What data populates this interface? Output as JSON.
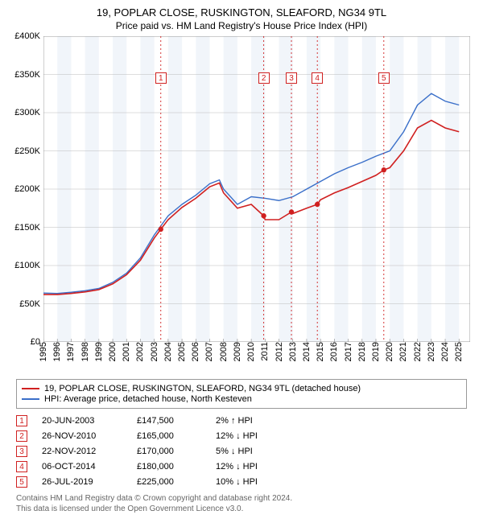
{
  "title": "19, POPLAR CLOSE, RUSKINGTON, SLEAFORD, NG34 9TL",
  "subtitle": "Price paid vs. HM Land Registry's House Price Index (HPI)",
  "chart": {
    "type": "line",
    "xlim": [
      1995,
      2025.8
    ],
    "ylim": [
      0,
      400000
    ],
    "ytick_step": 50000,
    "yticks_labels": [
      "£0",
      "£50K",
      "£100K",
      "£150K",
      "£200K",
      "£250K",
      "£300K",
      "£350K",
      "£400K"
    ],
    "xticks": [
      1995,
      1996,
      1997,
      1998,
      1999,
      2000,
      2001,
      2002,
      2003,
      2004,
      2005,
      2006,
      2007,
      2008,
      2009,
      2010,
      2011,
      2012,
      2013,
      2014,
      2015,
      2016,
      2017,
      2018,
      2019,
      2020,
      2021,
      2022,
      2023,
      2024,
      2025
    ],
    "band_color": "#e6ecf5",
    "grid_color": "#bbbbbb",
    "axis_color": "#888888",
    "background": "#ffffff",
    "label_fontsize": 11,
    "series": [
      {
        "key": "hpi",
        "label": "HPI: Average price, detached house, North Kesteven",
        "color": "#3a6fc9",
        "width": 1.4,
        "points": [
          [
            1995,
            64000
          ],
          [
            1996,
            63500
          ],
          [
            1997,
            65000
          ],
          [
            1998,
            67000
          ],
          [
            1999,
            70000
          ],
          [
            2000,
            78000
          ],
          [
            2001,
            90000
          ],
          [
            2002,
            110000
          ],
          [
            2003,
            140000
          ],
          [
            2004,
            165000
          ],
          [
            2005,
            180000
          ],
          [
            2006,
            192000
          ],
          [
            2007,
            207000
          ],
          [
            2007.7,
            212000
          ],
          [
            2008,
            200000
          ],
          [
            2009,
            180000
          ],
          [
            2010,
            190000
          ],
          [
            2011,
            188000
          ],
          [
            2012,
            185000
          ],
          [
            2013,
            190000
          ],
          [
            2014,
            200000
          ],
          [
            2015,
            210000
          ],
          [
            2016,
            220000
          ],
          [
            2017,
            228000
          ],
          [
            2018,
            235000
          ],
          [
            2019,
            243000
          ],
          [
            2020,
            250000
          ],
          [
            2021,
            275000
          ],
          [
            2022,
            310000
          ],
          [
            2023,
            325000
          ],
          [
            2024,
            315000
          ],
          [
            2025,
            310000
          ]
        ]
      },
      {
        "key": "property",
        "label": "19, POPLAR CLOSE, RUSKINGTON, SLEAFORD, NG34 9TL (detached house)",
        "color": "#d02020",
        "width": 1.6,
        "points": [
          [
            1995,
            62000
          ],
          [
            1996,
            62000
          ],
          [
            1997,
            63500
          ],
          [
            1998,
            65500
          ],
          [
            1999,
            68500
          ],
          [
            2000,
            76000
          ],
          [
            2001,
            88000
          ],
          [
            2002,
            107000
          ],
          [
            2003,
            136000
          ],
          [
            2003.47,
            147500
          ],
          [
            2004,
            160000
          ],
          [
            2005,
            176000
          ],
          [
            2006,
            188000
          ],
          [
            2007,
            203000
          ],
          [
            2007.7,
            208000
          ],
          [
            2008,
            195000
          ],
          [
            2009,
            175000
          ],
          [
            2010,
            180000
          ],
          [
            2010.9,
            165000
          ],
          [
            2011,
            160000
          ],
          [
            2012,
            160000
          ],
          [
            2012.9,
            170000
          ],
          [
            2013,
            168000
          ],
          [
            2014,
            175000
          ],
          [
            2014.77,
            180000
          ],
          [
            2015,
            186000
          ],
          [
            2016,
            195000
          ],
          [
            2017,
            202000
          ],
          [
            2018,
            210000
          ],
          [
            2019,
            218000
          ],
          [
            2019.57,
            225000
          ],
          [
            2020,
            228000
          ],
          [
            2021,
            250000
          ],
          [
            2022,
            280000
          ],
          [
            2023,
            290000
          ],
          [
            2024,
            280000
          ],
          [
            2025,
            275000
          ]
        ]
      }
    ],
    "sale_markers": [
      {
        "n": "1",
        "x": 2003.47,
        "y": 147500,
        "label_y": 345000
      },
      {
        "n": "2",
        "x": 2010.9,
        "y": 165000,
        "label_y": 345000
      },
      {
        "n": "3",
        "x": 2012.9,
        "y": 170000,
        "label_y": 345000
      },
      {
        "n": "4",
        "x": 2014.77,
        "y": 180000,
        "label_y": 345000
      },
      {
        "n": "5",
        "x": 2019.57,
        "y": 225000,
        "label_y": 345000
      }
    ],
    "marker_border": "#d02020",
    "marker_dot_fill": "#d02020",
    "marker_line_dash": "2,3"
  },
  "legend": {
    "rows": [
      {
        "color": "#d02020",
        "text": "19, POPLAR CLOSE, RUSKINGTON, SLEAFORD, NG34 9TL (detached house)"
      },
      {
        "color": "#3a6fc9",
        "text": "HPI: Average price, detached house, North Kesteven"
      }
    ]
  },
  "transactions": [
    {
      "n": "1",
      "date": "20-JUN-2003",
      "price": "£147,500",
      "diff": "2% ↑ HPI"
    },
    {
      "n": "2",
      "date": "26-NOV-2010",
      "price": "£165,000",
      "diff": "12% ↓ HPI"
    },
    {
      "n": "3",
      "date": "22-NOV-2012",
      "price": "£170,000",
      "diff": "5% ↓ HPI"
    },
    {
      "n": "4",
      "date": "06-OCT-2014",
      "price": "£180,000",
      "diff": "12% ↓ HPI"
    },
    {
      "n": "5",
      "date": "26-JUL-2019",
      "price": "£225,000",
      "diff": "10% ↓ HPI"
    }
  ],
  "footer1": "Contains HM Land Registry data © Crown copyright and database right 2024.",
  "footer2": "This data is licensed under the Open Government Licence v3.0."
}
